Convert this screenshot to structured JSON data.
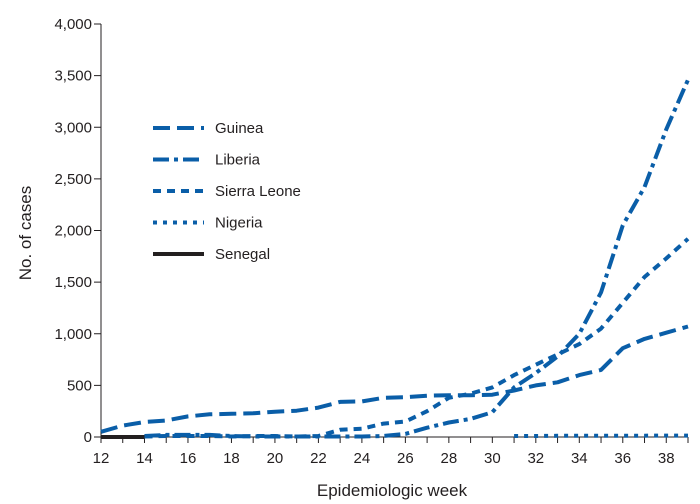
{
  "chart_data": {
    "type": "line",
    "title": "",
    "xlabel": "Epidemiologic week",
    "ylabel": "No. of cases",
    "xlim": [
      12,
      39
    ],
    "ylim": [
      0,
      4000
    ],
    "x_ticks": [
      12,
      14,
      16,
      18,
      20,
      22,
      24,
      26,
      28,
      30,
      32,
      34,
      36,
      38
    ],
    "y_ticks": [
      0,
      500,
      1000,
      1500,
      2000,
      2500,
      3000,
      3500,
      4000
    ],
    "y_tick_labels": [
      "0",
      "500",
      "1,000",
      "1,500",
      "2,000",
      "2,500",
      "3,000",
      "3,500",
      "4,000"
    ],
    "grid": false,
    "legend_position": "upper-left",
    "series": [
      {
        "name": "Guinea",
        "color": "#0a5ea8",
        "style": "dashed",
        "x": [
          12,
          13,
          14,
          15,
          16,
          17,
          18,
          19,
          20,
          21,
          22,
          23,
          24,
          25,
          26,
          27,
          28,
          29,
          30,
          31,
          32,
          33,
          34,
          35,
          36,
          37,
          38,
          39
        ],
        "values": [
          50,
          110,
          145,
          160,
          200,
          220,
          225,
          230,
          245,
          255,
          285,
          340,
          345,
          380,
          385,
          400,
          405,
          405,
          410,
          450,
          500,
          530,
          600,
          650,
          860,
          950,
          1010,
          1070
        ]
      },
      {
        "name": "Liberia",
        "color": "#0a5ea8",
        "style": "dashdot",
        "x": [
          14,
          15,
          16,
          17,
          18,
          19,
          20,
          21,
          22,
          23,
          24,
          25,
          26,
          27,
          28,
          29,
          30,
          31,
          32,
          33,
          34,
          35,
          36,
          37,
          38,
          39
        ],
        "values": [
          10,
          20,
          20,
          20,
          10,
          5,
          5,
          5,
          5,
          5,
          5,
          10,
          30,
          90,
          140,
          175,
          240,
          480,
          620,
          780,
          1000,
          1400,
          2050,
          2420,
          2980,
          3460
        ]
      },
      {
        "name": "Sierra Leone",
        "color": "#0a5ea8",
        "style": "dotted-dash",
        "x": [
          14,
          15,
          16,
          17,
          18,
          19,
          20,
          21,
          22,
          23,
          24,
          25,
          26,
          27,
          28,
          29,
          30,
          31,
          32,
          33,
          34,
          35,
          36,
          37,
          38,
          39
        ],
        "values": [
          5,
          10,
          10,
          10,
          5,
          10,
          10,
          5,
          10,
          70,
          80,
          130,
          150,
          250,
          380,
          420,
          480,
          600,
          700,
          800,
          900,
          1050,
          1300,
          1550,
          1730,
          1920
        ]
      },
      {
        "name": "Nigeria",
        "color": "#0a5ea8",
        "style": "dotted",
        "x": [
          31,
          32,
          33,
          34,
          35,
          36,
          37,
          38,
          39
        ],
        "values": [
          10,
          10,
          12,
          12,
          12,
          13,
          13,
          14,
          14
        ]
      },
      {
        "name": "Senegal",
        "color": "#231f20",
        "style": "solid",
        "x": [
          12,
          13,
          14
        ],
        "values": [
          0,
          0,
          0
        ]
      }
    ]
  }
}
